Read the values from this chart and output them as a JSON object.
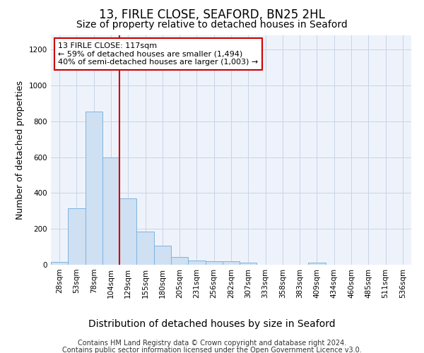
{
  "title": "13, FIRLE CLOSE, SEAFORD, BN25 2HL",
  "subtitle": "Size of property relative to detached houses in Seaford",
  "xlabel": "Distribution of detached houses by size in Seaford",
  "ylabel": "Number of detached properties",
  "categories": [
    "28sqm",
    "53sqm",
    "78sqm",
    "104sqm",
    "129sqm",
    "155sqm",
    "180sqm",
    "205sqm",
    "231sqm",
    "256sqm",
    "282sqm",
    "307sqm",
    "333sqm",
    "358sqm",
    "383sqm",
    "409sqm",
    "434sqm",
    "460sqm",
    "485sqm",
    "511sqm",
    "536sqm"
  ],
  "values": [
    15,
    315,
    855,
    600,
    370,
    185,
    105,
    45,
    22,
    18,
    18,
    10,
    0,
    0,
    0,
    12,
    0,
    0,
    0,
    0,
    0
  ],
  "bar_color": "#cfe0f2",
  "bar_edge_color": "#7fb3e0",
  "vline_color": "#cc0000",
  "annotation_text": "13 FIRLE CLOSE: 117sqm\n← 59% of detached houses are smaller (1,494)\n40% of semi-detached houses are larger (1,003) →",
  "annotation_box_color": "#ffffff",
  "annotation_box_edge_color": "#cc0000",
  "ylim": [
    0,
    1280
  ],
  "yticks": [
    0,
    200,
    400,
    600,
    800,
    1000,
    1200
  ],
  "footer_line1": "Contains HM Land Registry data © Crown copyright and database right 2024.",
  "footer_line2": "Contains public sector information licensed under the Open Government Licence v3.0.",
  "background_color": "#ffffff",
  "plot_bg_color": "#eef3fb",
  "grid_color": "#c8d4e8",
  "title_fontsize": 12,
  "subtitle_fontsize": 10,
  "axis_label_fontsize": 9,
  "tick_fontsize": 7.5,
  "footer_fontsize": 7,
  "annotation_fontsize": 8
}
